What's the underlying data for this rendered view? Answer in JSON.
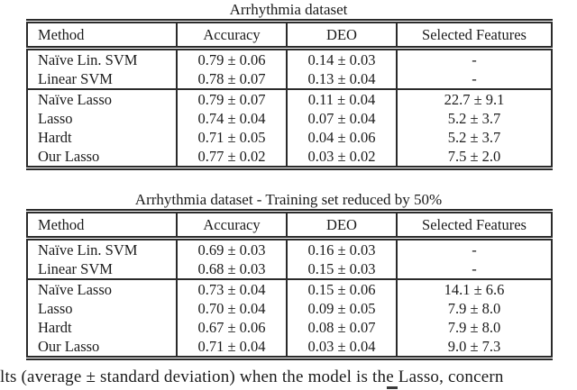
{
  "document": {
    "colors": {
      "background": "#ffffff",
      "text": "#1b1b1b",
      "rule": "#2b2b2b"
    },
    "tables": [
      {
        "title": "Arrhythmia dataset",
        "columns": [
          "Method",
          "Accuracy",
          "DEO",
          "Selected Features"
        ],
        "groups": [
          {
            "rows": [
              {
                "method": "Naïve Lin. SVM",
                "accuracy": "0.79 ± 0.06",
                "deo": "0.14 ± 0.03",
                "selected_features": "-"
              },
              {
                "method": "Linear SVM",
                "accuracy": "0.78 ± 0.07",
                "deo": "0.13 ± 0.04",
                "selected_features": "-"
              }
            ]
          },
          {
            "rows": [
              {
                "method": "Naïve Lasso",
                "accuracy": "0.79 ± 0.07",
                "deo": "0.11 ± 0.04",
                "selected_features": "22.7 ± 9.1"
              },
              {
                "method": "Lasso",
                "accuracy": "0.74 ± 0.04",
                "deo": "0.07 ± 0.04",
                "selected_features": "5.2 ± 3.7"
              },
              {
                "method": "Hardt",
                "accuracy": "0.71 ± 0.05",
                "deo": "0.04 ± 0.06",
                "selected_features": "5.2 ± 3.7"
              },
              {
                "method": "Our Lasso",
                "accuracy": "0.77 ± 0.02",
                "deo": "0.03 ± 0.02",
                "selected_features": "7.5 ± 2.0"
              }
            ]
          }
        ]
      },
      {
        "title": "Arrhythmia dataset - Training set reduced by 50%",
        "columns": [
          "Method",
          "Accuracy",
          "DEO",
          "Selected Features"
        ],
        "groups": [
          {
            "rows": [
              {
                "method": "Naïve Lin. SVM",
                "accuracy": "0.69 ± 0.03",
                "deo": "0.16 ± 0.03",
                "selected_features": "-"
              },
              {
                "method": "Linear SVM",
                "accuracy": "0.68 ± 0.03",
                "deo": "0.15 ± 0.03",
                "selected_features": "-"
              }
            ]
          },
          {
            "rows": [
              {
                "method": "Naïve Lasso",
                "accuracy": "0.73 ± 0.04",
                "deo": "0.15 ± 0.06",
                "selected_features": "14.1 ± 6.6"
              },
              {
                "method": "Lasso",
                "accuracy": "0.70 ± 0.04",
                "deo": "0.09 ± 0.05",
                "selected_features": "7.9 ± 8.0"
              },
              {
                "method": "Hardt",
                "accuracy": "0.67 ± 0.06",
                "deo": "0.08 ± 0.07",
                "selected_features": "7.9 ± 8.0"
              },
              {
                "method": "Our Lasso",
                "accuracy": "0.71 ± 0.04",
                "deo": "0.03 ± 0.04",
                "selected_features": "9.0 ± 7.3"
              }
            ]
          }
        ]
      }
    ],
    "caption_fragment": "lts (average ± standard deviation) when the model is the Lasso, concern"
  }
}
